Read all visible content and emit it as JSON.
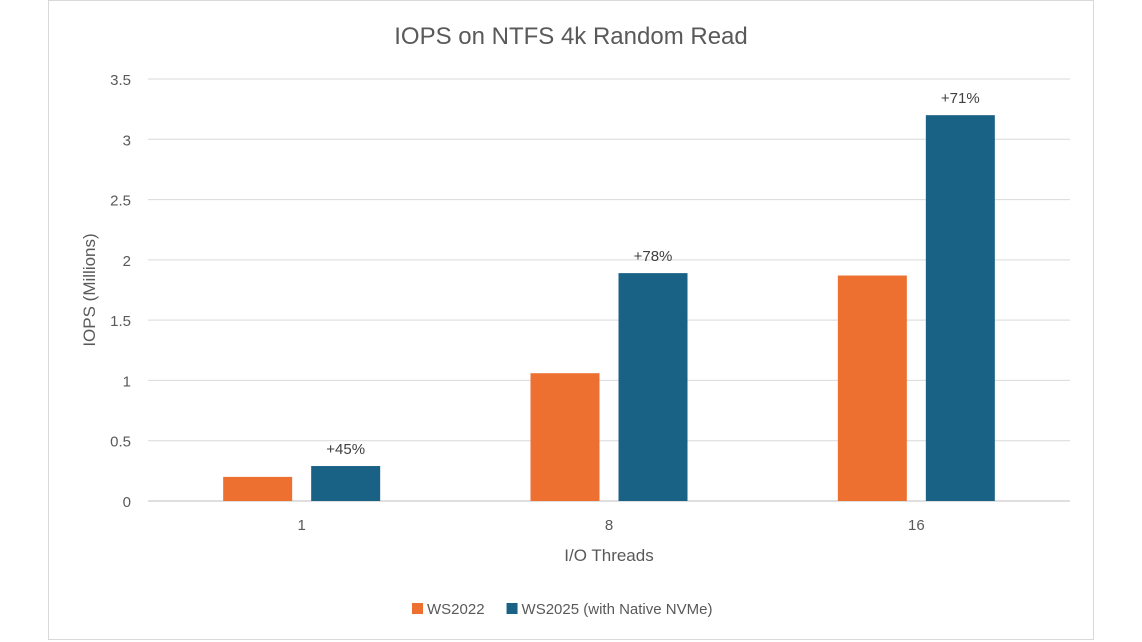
{
  "chart_data": {
    "type": "bar",
    "title": "IOPS on NTFS 4k Random Read",
    "xlabel": "I/O Threads",
    "ylabel": "IOPS (Millions)",
    "categories": [
      "1",
      "8",
      "16"
    ],
    "series": [
      {
        "name": "WS2022",
        "color": "#ed7031",
        "values": [
          0.2,
          1.06,
          1.87
        ]
      },
      {
        "name": "WS2025 (with Native NVMe)",
        "color": "#1a6186",
        "values": [
          0.29,
          1.89,
          3.2
        ]
      }
    ],
    "annotations": [
      "+45%",
      "+78%",
      "+71%"
    ],
    "ylim": [
      0,
      3.5
    ],
    "yticks": [
      "0",
      "0.5",
      "1",
      "1.5",
      "2",
      "2.5",
      "3",
      "3.5"
    ],
    "grid": true,
    "legend_position": "bottom"
  }
}
